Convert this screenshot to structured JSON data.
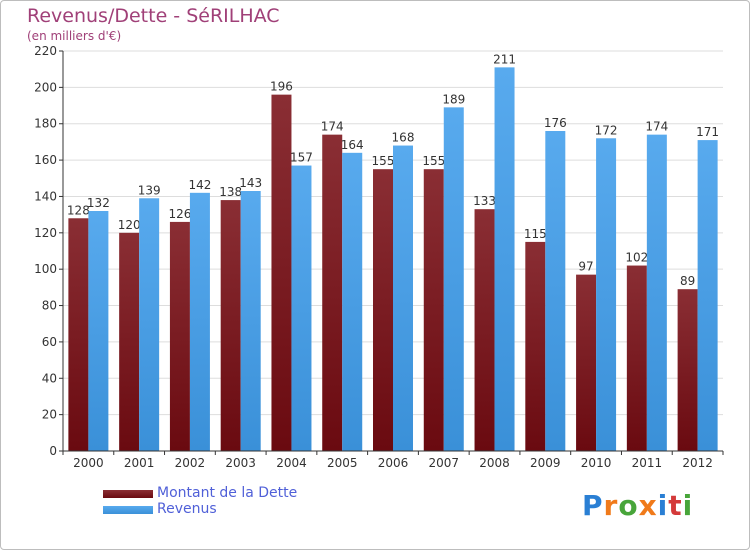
{
  "title": "Revenus/Dette - SéRILHAC",
  "subtitle": "(en milliers d'€)",
  "logo": {
    "text": "Proxiti",
    "colors": [
      "#2a7fd4",
      "#f07a1a",
      "#48a53a",
      "#f07a1a",
      "#2a7fd4",
      "#d43a3a",
      "#48a53a"
    ]
  },
  "colors": {
    "dette": "#6a0a10",
    "dette_light": "#8a2e34",
    "revenus": "#3a90d8",
    "revenus_light": "#58aaee",
    "axis": "#333333",
    "grid": "#dddddd",
    "text": "#333333"
  },
  "chart_data": {
    "type": "bar",
    "title": "Revenus/Dette - SéRILHAC",
    "ylabel": "(en milliers d'€)",
    "xlabel": "",
    "ylim": [
      0,
      220
    ],
    "yticks": [
      0,
      20,
      40,
      60,
      80,
      100,
      120,
      140,
      160,
      180,
      200,
      220
    ],
    "grid": true,
    "legend_position": "bottom-left",
    "categories": [
      "2000",
      "2001",
      "2002",
      "2003",
      "2004",
      "2005",
      "2006",
      "2007",
      "2008",
      "2009",
      "2010",
      "2011",
      "2012"
    ],
    "series": [
      {
        "name": "Montant de la Dette",
        "color": "#6a0a10",
        "values": [
          128,
          120,
          126,
          138,
          196,
          174,
          155,
          155,
          133,
          115,
          97,
          102,
          89
        ]
      },
      {
        "name": "Revenus",
        "color": "#3a90d8",
        "values": [
          132,
          139,
          142,
          143,
          157,
          164,
          168,
          189,
          211,
          176,
          172,
          174,
          171
        ]
      }
    ]
  }
}
